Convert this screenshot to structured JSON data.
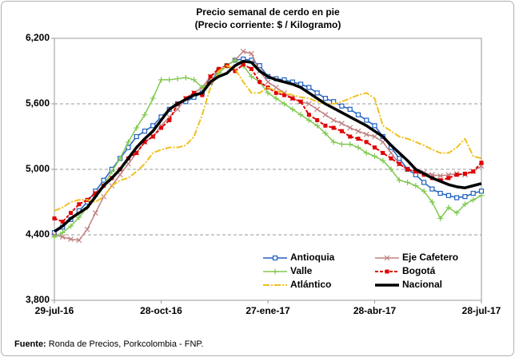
{
  "chart_data": {
    "type": "line",
    "title": [
      "Precio semanal de cerdo en pie",
      "(Precio corriente: $ / Kilogramo)"
    ],
    "categories": [
      "29-jul-16",
      null,
      null,
      null,
      null,
      null,
      null,
      null,
      null,
      null,
      null,
      null,
      null,
      "28-oct-16",
      null,
      null,
      null,
      null,
      null,
      null,
      null,
      null,
      null,
      null,
      null,
      null,
      "27-ene-17",
      null,
      null,
      null,
      null,
      null,
      null,
      null,
      null,
      null,
      null,
      null,
      null,
      "28-abr-17",
      null,
      null,
      null,
      null,
      null,
      null,
      null,
      null,
      null,
      null,
      null,
      null,
      "28-jul-17"
    ],
    "ylim": [
      3800,
      6200
    ],
    "yticks": [
      {
        "value": 3800,
        "label": "3,800"
      },
      {
        "value": 4400,
        "label": "4,400"
      },
      {
        "value": 5000,
        "label": "5,000"
      },
      {
        "value": 5600,
        "label": "5,600"
      },
      {
        "value": 6200,
        "label": "6,200"
      }
    ],
    "grid": true,
    "legend": "lower right",
    "series": [
      {
        "name": "Antioquia",
        "color": "#2060c0",
        "marker": "square-open",
        "width": 1.5,
        "dash": "none",
        "values": [
          4420,
          4470,
          4540,
          4620,
          4700,
          4800,
          4900,
          5000,
          5100,
          5200,
          5300,
          5350,
          5400,
          5480,
          5550,
          5600,
          5620,
          5660,
          5700,
          5800,
          5900,
          5950,
          6000,
          6010,
          6000,
          5950,
          5850,
          5830,
          5820,
          5800,
          5780,
          5750,
          5700,
          5650,
          5620,
          5580,
          5550,
          5500,
          5450,
          5400,
          5300,
          5200,
          5100,
          5000,
          4950,
          4880,
          4820,
          4780,
          4760,
          4740,
          4750,
          4780,
          4800
        ]
      },
      {
        "name": "Eje Cafetero",
        "color": "#c08080",
        "marker": "x",
        "width": 1.5,
        "dash": "none",
        "values": [
          4400,
          4380,
          4360,
          4350,
          4450,
          4600,
          4750,
          4850,
          4950,
          5050,
          5150,
          5250,
          5300,
          5400,
          5480,
          5550,
          5650,
          5700,
          5750,
          5850,
          5900,
          5950,
          6000,
          6080,
          6060,
          5900,
          5800,
          5750,
          5700,
          5650,
          5620,
          5600,
          5550,
          5500,
          5450,
          5420,
          5380,
          5350,
          5320,
          5300,
          5250,
          5150,
          5050,
          5000,
          4980,
          4970,
          4950,
          4940,
          4950,
          4960,
          4950,
          4980,
          5030
        ]
      },
      {
        "name": "Valle",
        "color": "#80c850",
        "marker": "plus",
        "width": 1.5,
        "dash": "none",
        "values": [
          4380,
          4420,
          4480,
          4560,
          4650,
          4750,
          4850,
          4980,
          5100,
          5250,
          5380,
          5500,
          5650,
          5820,
          5820,
          5830,
          5840,
          5820,
          5750,
          5800,
          5880,
          5950,
          6000,
          5950,
          5850,
          5800,
          5700,
          5650,
          5600,
          5550,
          5500,
          5450,
          5400,
          5330,
          5250,
          5230,
          5230,
          5200,
          5150,
          5120,
          5080,
          5000,
          4900,
          4880,
          4850,
          4800,
          4700,
          4550,
          4650,
          4600,
          4680,
          4720,
          4760
        ]
      },
      {
        "name": "Bogotá",
        "color": "#e00000",
        "marker": "square",
        "width": 2,
        "dash": "4 2",
        "values": [
          4550,
          4520,
          4600,
          4680,
          4720,
          4780,
          4850,
          4920,
          5000,
          5100,
          5150,
          5250,
          5300,
          5380,
          5450,
          5600,
          5650,
          5700,
          5680,
          5850,
          5920,
          5950,
          5900,
          5960,
          5920,
          5800,
          5750,
          5700,
          5680,
          5650,
          5620,
          5500,
          5450,
          5400,
          5380,
          5350,
          5300,
          5280,
          5250,
          5200,
          5150,
          5100,
          5050,
          5000,
          4980,
          4950,
          4920,
          4900,
          4920,
          4950,
          4960,
          4980,
          5060
        ]
      },
      {
        "name": "Atlántico",
        "color": "#f0c020",
        "marker": "none",
        "width": 2,
        "dash": "8 2 2 2",
        "values": [
          4620,
          4650,
          4700,
          4720,
          4720,
          4700,
          4750,
          4850,
          4900,
          4920,
          4980,
          5050,
          5150,
          5180,
          5200,
          5200,
          5220,
          5300,
          5500,
          5750,
          5900,
          5950,
          5920,
          5800,
          5700,
          5700,
          5750,
          5720,
          5700,
          5680,
          5660,
          5650,
          5620,
          5600,
          5600,
          5620,
          5650,
          5680,
          5700,
          5650,
          5400,
          5350,
          5300,
          5280,
          5250,
          5220,
          5180,
          5150,
          5150,
          5200,
          5280,
          5120,
          5100
        ]
      },
      {
        "name": "Nacional",
        "color": "#000000",
        "marker": "none",
        "width": 3.5,
        "dash": "none",
        "values": [
          4430,
          4480,
          4550,
          4600,
          4650,
          4750,
          4850,
          4920,
          5000,
          5100,
          5200,
          5280,
          5350,
          5450,
          5550,
          5600,
          5640,
          5680,
          5700,
          5800,
          5850,
          5880,
          5950,
          5990,
          5980,
          5900,
          5850,
          5820,
          5800,
          5780,
          5750,
          5700,
          5650,
          5600,
          5560,
          5520,
          5480,
          5440,
          5400,
          5350,
          5300,
          5220,
          5150,
          5080,
          5000,
          4960,
          4920,
          4890,
          4860,
          4840,
          4830,
          4850,
          4870
        ]
      }
    ],
    "source_label": "Fuente:",
    "source": "Ronda de Precios, Porkcolombia  - FNP."
  }
}
